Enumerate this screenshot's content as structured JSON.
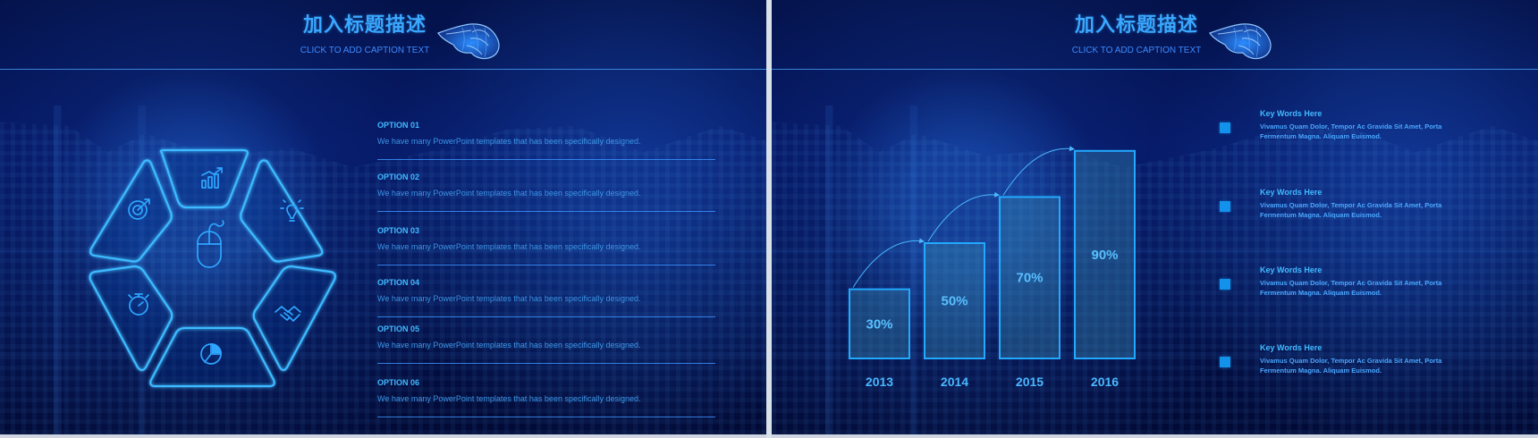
{
  "colors": {
    "background": "#04145f",
    "accent": "#3aa8ff",
    "line": "#3d95ff",
    "square": "#1292ea"
  },
  "left_slide": {
    "title": "加入标题描述",
    "caption": "CLICK TO ADD CAPTION TEXT",
    "hand_icon": "hand-icon",
    "hex_icons": [
      "chart-icon",
      "target-icon",
      "bulb-icon",
      "mouse-icon",
      "stopwatch-icon",
      "handshake-icon",
      "pie-chart-icon"
    ],
    "options": [
      {
        "title": "OPTION 01",
        "text": "We have many PowerPoint  templates that has been specifically designed."
      },
      {
        "title": "OPTION 02",
        "text": "We have many PowerPoint  templates that has been specifically designed."
      },
      {
        "title": "OPTION 03",
        "text": "We have many PowerPoint  templates that has been specifically designed."
      },
      {
        "title": "OPTION 04",
        "text": "We have many PowerPoint  templates that has been specifically designed."
      },
      {
        "title": "OPTION 05",
        "text": "We have many PowerPoint  templates that has been specifically designed."
      },
      {
        "title": "OPTION 06",
        "text": "We have many PowerPoint  templates that has been specifically designed."
      }
    ]
  },
  "right_slide": {
    "title": "加入标题描述",
    "caption": "CLICK TO ADD CAPTION TEXT",
    "hand_icon": "hand-icon",
    "keywords": [
      {
        "title": "Key Words Here",
        "text": "Vivamus Quam Dolor, Tempor Ac Gravida Sit Amet, Porta Fermentum Magna.  Aliquam  Euismod."
      },
      {
        "title": "Key Words Here",
        "text": "Vivamus Quam Dolor, Tempor Ac Gravida Sit Amet, Porta Fermentum Magna.  Aliquam  Euismod."
      },
      {
        "title": "Key Words Here",
        "text": "Vivamus Quam Dolor, Tempor Ac Gravida Sit Amet, Porta Fermentum Magna.  Aliquam  Euismod."
      },
      {
        "title": "Key Words Here",
        "text": "Vivamus Quam Dolor, Tempor Ac Gravida Sit Amet, Porta Fermentum Magna.  Aliquam  Euismod."
      }
    ]
  },
  "chart_data": {
    "type": "bar",
    "categories": [
      "2013",
      "2014",
      "2015",
      "2016"
    ],
    "values": [
      30,
      50,
      70,
      90
    ],
    "labels": [
      "30%",
      "50%",
      "70%",
      "90%"
    ],
    "ylim": [
      0,
      100
    ],
    "title": "",
    "xlabel": "",
    "ylabel": "",
    "grid": false,
    "legend": "none"
  }
}
